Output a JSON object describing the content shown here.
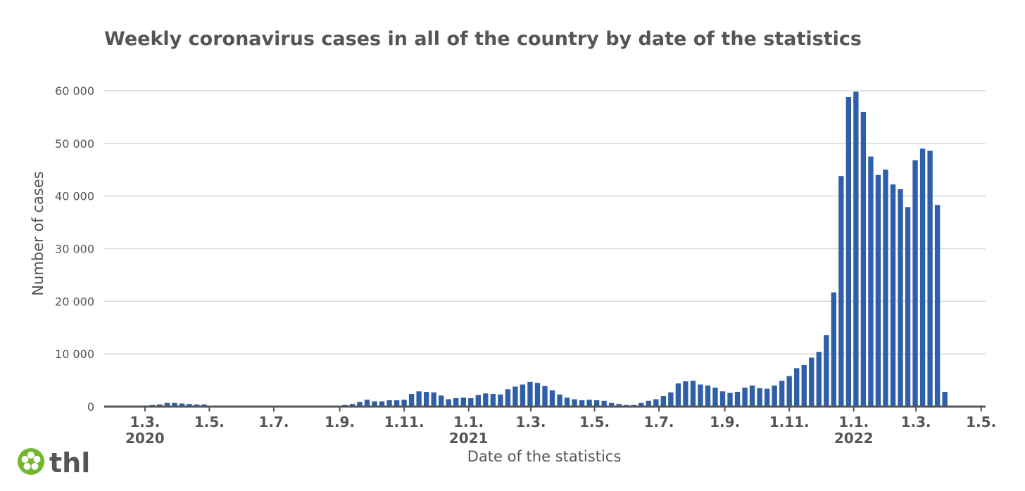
{
  "logo": {
    "text": "thl",
    "icon": "thl-flower-logo-icon",
    "color": "#72b62c"
  },
  "chart_data": {
    "type": "bar",
    "title": "Weekly coronavirus cases in all of the country by date of the statistics",
    "xlabel": "Date of the statistics",
    "ylabel": "Number of cases",
    "ylim": [
      0,
      60000
    ],
    "y_ticks": [
      0,
      10000,
      20000,
      30000,
      40000,
      50000,
      60000
    ],
    "y_tick_labels": [
      "0",
      "10 000",
      "20 000",
      "30 000",
      "40 000",
      "50 000",
      "60 000"
    ],
    "x_ticks": [
      {
        "label": "1.3.",
        "year": "2020",
        "week_index": 0
      },
      {
        "label": "1.5.",
        "year": "",
        "week_index": 8.7
      },
      {
        "label": "1.7.",
        "year": "",
        "week_index": 17.4
      },
      {
        "label": "1.9.",
        "year": "",
        "week_index": 26.3
      },
      {
        "label": "1.11.",
        "year": "",
        "week_index": 35
      },
      {
        "label": "1.1.",
        "year": "2021",
        "week_index": 43.7
      },
      {
        "label": "1.3.",
        "year": "",
        "week_index": 52.1
      },
      {
        "label": "1.5.",
        "year": "",
        "week_index": 60.7
      },
      {
        "label": "1.7.",
        "year": "",
        "week_index": 69.4
      },
      {
        "label": "1.9.",
        "year": "",
        "week_index": 78.3
      },
      {
        "label": "1.11.",
        "year": "",
        "week_index": 87
      },
      {
        "label": "1.1.",
        "year": "2022",
        "week_index": 95.7
      },
      {
        "label": "1.3.",
        "year": "",
        "week_index": 104.1
      },
      {
        "label": "1.5.",
        "year": "",
        "week_index": 112.9
      }
    ],
    "week_range": [
      -5.5,
      113.5
    ],
    "first_week_index": -2,
    "bar_color": "#2f5fa8",
    "grid": true,
    "values": [
      0,
      20,
      100,
      300,
      400,
      700,
      700,
      600,
      500,
      400,
      400,
      200,
      100,
      100,
      100,
      100,
      100,
      100,
      100,
      100,
      100,
      100,
      100,
      100,
      100,
      100,
      100,
      100,
      200,
      300,
      500,
      900,
      1300,
      1000,
      1000,
      1200,
      1200,
      1300,
      2400,
      2900,
      2800,
      2700,
      2100,
      1400,
      1600,
      1700,
      1600,
      2200,
      2500,
      2400,
      2300,
      3300,
      3800,
      4200,
      4700,
      4500,
      3900,
      3100,
      2300,
      1700,
      1400,
      1200,
      1300,
      1200,
      1100,
      700,
      500,
      300,
      300,
      700,
      1100,
      1400,
      2000,
      2700,
      4400,
      4800,
      4900,
      4200,
      4000,
      3600,
      2900,
      2600,
      2800,
      3600,
      4000,
      3500,
      3400,
      4000,
      4900,
      5800,
      7300,
      7900,
      9300,
      10400,
      13600,
      21700,
      43800,
      58800,
      59800,
      56000,
      47500,
      44000,
      45000,
      42200,
      41300,
      37900,
      46800,
      49000,
      48600,
      38300,
      2800
    ]
  }
}
